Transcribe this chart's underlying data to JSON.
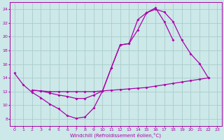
{
  "bg_color": "#cce8e8",
  "grid_color": "#aacccc",
  "line_color": "#aa00aa",
  "marker": "D",
  "marker_size": 2.0,
  "linewidth": 0.9,
  "xlabel": "Windchill (Refroidissement éolien,°C)",
  "xlim": [
    -0.5,
    23.5
  ],
  "ylim": [
    7,
    25
  ],
  "yticks": [
    8,
    10,
    12,
    14,
    16,
    18,
    20,
    22,
    24
  ],
  "xticks": [
    0,
    1,
    2,
    3,
    4,
    5,
    6,
    7,
    8,
    9,
    10,
    11,
    12,
    13,
    14,
    15,
    16,
    17,
    18,
    19,
    20,
    21,
    22,
    23
  ],
  "series": [
    {
      "x": [
        0,
        1,
        2,
        3,
        4,
        5,
        6,
        7,
        8,
        9,
        10,
        11,
        12,
        13,
        14,
        15,
        16,
        17,
        18,
        19,
        20,
        21,
        22
      ],
      "y": [
        14.7,
        13.0,
        11.9,
        11.1,
        10.2,
        9.5,
        8.5,
        8.1,
        8.3,
        9.6,
        12.1,
        15.5,
        18.8,
        19.0,
        21.0,
        23.5,
        24.0,
        23.6,
        22.2,
        19.5,
        17.5,
        16.1,
        14.0
      ]
    },
    {
      "x": [
        2,
        3,
        4,
        5,
        6,
        7,
        8,
        9,
        10,
        11,
        12,
        13,
        14,
        15,
        16,
        17,
        18,
        19,
        20,
        21,
        22
      ],
      "y": [
        12.2,
        12.1,
        12.0,
        12.0,
        12.0,
        12.0,
        12.0,
        12.0,
        12.1,
        12.2,
        12.3,
        12.4,
        12.5,
        12.6,
        12.8,
        13.0,
        13.2,
        13.4,
        13.6,
        13.8,
        14.0
      ]
    },
    {
      "x": [
        2,
        3,
        4,
        5,
        6,
        7,
        8,
        9,
        10,
        11,
        12,
        13,
        14,
        15,
        16,
        17,
        18
      ],
      "y": [
        12.2,
        12.1,
        11.8,
        11.5,
        11.3,
        11.0,
        11.0,
        11.5,
        12.1,
        15.5,
        18.8,
        19.0,
        22.5,
        23.5,
        24.2,
        22.2,
        19.5
      ]
    }
  ]
}
